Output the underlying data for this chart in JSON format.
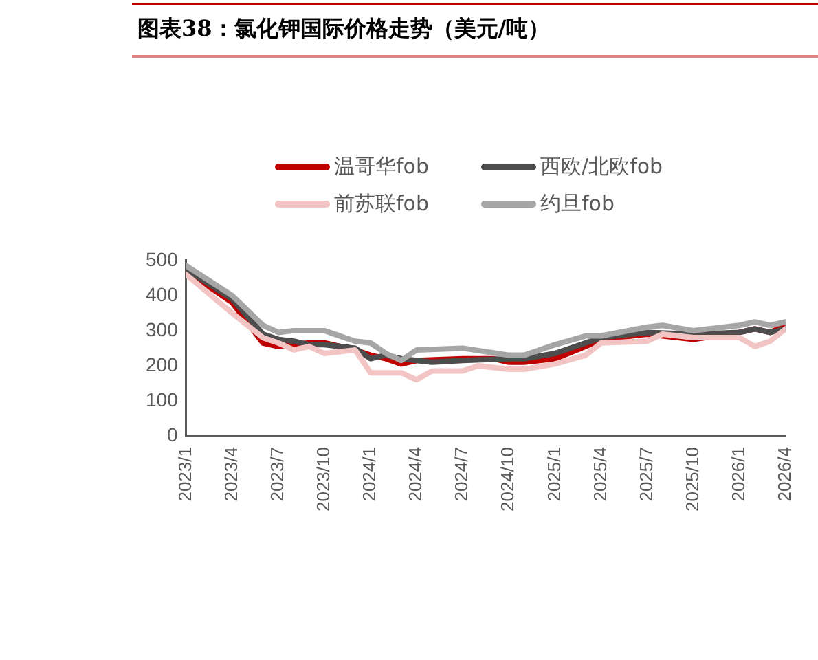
{
  "chart_data": {
    "type": "line",
    "title": "图表38：氯化钾国际价格走势（美元/吨）",
    "legend": "top",
    "grid": false,
    "marker": "none",
    "line_style": "solid",
    "xlim": [
      "2023-01",
      "2026-04"
    ],
    "xticks": [
      {
        "value": "2023-01",
        "label": "2023/1"
      },
      {
        "value": "2023-04",
        "label": "2023/4"
      },
      {
        "value": "2023-07",
        "label": "2023/7"
      },
      {
        "value": "2023-10",
        "label": "2023/10"
      },
      {
        "value": "2024-01",
        "label": "2024/1"
      },
      {
        "value": "2024-04",
        "label": "2024/4"
      },
      {
        "value": "2024-07",
        "label": "2024/7"
      },
      {
        "value": "2024-10",
        "label": "2024/10"
      },
      {
        "value": "2025-01",
        "label": "2025/1"
      },
      {
        "value": "2025-04",
        "label": "2025/4"
      },
      {
        "value": "2025-07",
        "label": "2025/7"
      },
      {
        "value": "2025-10",
        "label": "2025/10"
      },
      {
        "value": "2026-01",
        "label": "2026/1"
      },
      {
        "value": "2026-04",
        "label": "2026/4"
      }
    ],
    "ylim": [
      0,
      500
    ],
    "yticks": [
      0,
      100,
      200,
      300,
      400,
      500
    ],
    "series": [
      {
        "name": "温哥华fob",
        "color": "#c00000",
        "x": [
          "2023-01",
          "2023-04",
          "2023-06",
          "2023-07",
          "2023-09",
          "2023-10",
          "2023-12",
          "2024-01",
          "2024-02",
          "2024-03",
          "2024-04",
          "2024-07",
          "2024-09",
          "2024-10",
          "2024-11",
          "2025-01",
          "2025-03",
          "2025-04",
          "2025-07",
          "2025-08",
          "2025-10",
          "2026-01",
          "2026-02",
          "2026-03",
          "2026-04"
        ],
        "values": [
          470,
          380,
          265,
          255,
          265,
          265,
          245,
          230,
          220,
          205,
          215,
          220,
          220,
          210,
          210,
          220,
          255,
          275,
          290,
          285,
          275,
          295,
          305,
          295,
          315
        ]
      },
      {
        "name": "西欧/北欧fob",
        "color": "#4d4d4d",
        "x": [
          "2023-01",
          "2023-04",
          "2023-06",
          "2023-07",
          "2023-08",
          "2023-09",
          "2023-10",
          "2023-12",
          "2024-01",
          "2024-02",
          "2024-03",
          "2024-04",
          "2024-05",
          "2024-07",
          "2024-10",
          "2024-11",
          "2025-01",
          "2025-03",
          "2025-04",
          "2025-07",
          "2025-10",
          "2026-01",
          "2026-02",
          "2026-03",
          "2026-04"
        ],
        "values": [
          475,
          390,
          290,
          275,
          270,
          260,
          260,
          250,
          220,
          230,
          220,
          215,
          210,
          215,
          220,
          220,
          235,
          265,
          280,
          295,
          290,
          295,
          305,
          295,
          305
        ]
      },
      {
        "name": "前苏联fob",
        "color": "#f2c4c4",
        "x": [
          "2023-01",
          "2023-04",
          "2023-06",
          "2023-07",
          "2023-08",
          "2023-09",
          "2023-10",
          "2023-12",
          "2024-01",
          "2024-03",
          "2024-04",
          "2024-05",
          "2024-07",
          "2024-08",
          "2024-10",
          "2024-11",
          "2025-01",
          "2025-03",
          "2025-04",
          "2025-07",
          "2025-08",
          "2025-10",
          "2026-01",
          "2026-02",
          "2026-03",
          "2026-04"
        ],
        "values": [
          460,
          350,
          280,
          265,
          245,
          255,
          235,
          245,
          180,
          180,
          160,
          185,
          185,
          200,
          190,
          190,
          205,
          230,
          265,
          270,
          290,
          280,
          280,
          255,
          270,
          305
        ]
      },
      {
        "name": "约旦fob",
        "color": "#a6a6a6",
        "x": [
          "2023-01",
          "2023-04",
          "2023-06",
          "2023-07",
          "2023-08",
          "2023-10",
          "2023-12",
          "2024-01",
          "2024-02",
          "2024-03",
          "2024-04",
          "2024-07",
          "2024-10",
          "2024-11",
          "2025-01",
          "2025-03",
          "2025-04",
          "2025-07",
          "2025-08",
          "2025-10",
          "2025-12",
          "2026-01",
          "2026-02",
          "2026-03",
          "2026-04"
        ],
        "values": [
          485,
          400,
          315,
          295,
          300,
          300,
          270,
          265,
          235,
          215,
          245,
          250,
          230,
          230,
          260,
          285,
          285,
          310,
          315,
          300,
          310,
          315,
          325,
          315,
          325
        ]
      }
    ]
  }
}
